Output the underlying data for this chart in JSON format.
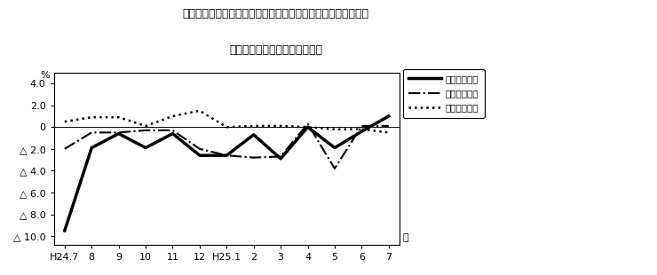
{
  "title_line1": "第４図　賃金、労働時間、常用雇用指数　対前年同月比の推移",
  "title_line2": "（規横５人以上　調査産業計）",
  "ylabel": "%",
  "ylim": [
    -10.8,
    5.0
  ],
  "yticks": [
    4.0,
    2.0,
    0.0,
    -2.0,
    -4.0,
    -6.0,
    -8.0,
    -10.0
  ],
  "ytick_labels": [
    "4.0",
    "2.0",
    "0",
    "△ 2.0",
    "△ 4.0",
    "△ 6.0",
    "△ 8.0",
    "△ 10.0"
  ],
  "xtick_labels": [
    "H24.7",
    "8",
    "9",
    "10",
    "11",
    "12",
    "H25.1",
    "2",
    "3",
    "4",
    "5",
    "6",
    "7"
  ],
  "xlabel_end": "月",
  "series_order": [
    "現金給与総額",
    "総実労働時間",
    "常用雇用指数"
  ],
  "series": {
    "現金給与総額": {
      "values": [
        -9.5,
        -1.9,
        -0.6,
        -1.9,
        -0.6,
        -2.6,
        -2.6,
        -0.7,
        -2.9,
        0.0,
        -1.9,
        -0.4,
        1.0
      ],
      "linestyle": "solid",
      "linewidth": 2.5
    },
    "総実労働時間": {
      "values": [
        -2.0,
        -0.5,
        -0.5,
        -0.3,
        -0.3,
        -2.0,
        -2.6,
        -2.8,
        -2.7,
        0.3,
        -3.8,
        0.1,
        0.1
      ],
      "linestyle": "dashdot",
      "linewidth": 1.5
    },
    "常用雇用指数": {
      "values": [
        0.5,
        0.9,
        0.9,
        0.1,
        1.0,
        1.5,
        0.0,
        0.1,
        0.1,
        0.0,
        -0.2,
        -0.2,
        -0.5
      ],
      "linestyle": "dotted",
      "linewidth": 1.8
    }
  },
  "background_color": "#ffffff"
}
